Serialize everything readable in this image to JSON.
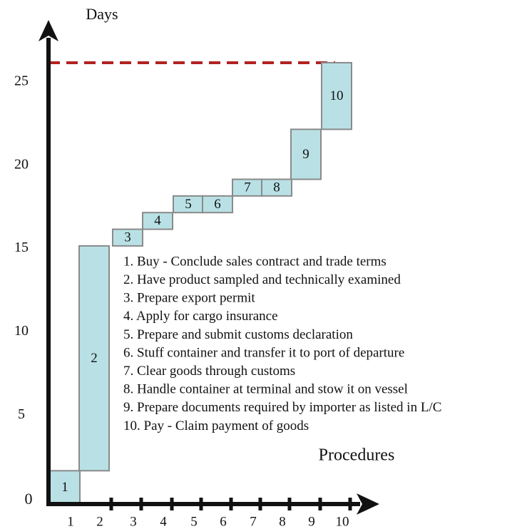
{
  "chart_data": {
    "type": "floating_bar",
    "y_label": "Days",
    "x_label": "Procedures",
    "origin_label": "0",
    "categories": [
      "1",
      "2",
      "3",
      "4",
      "5",
      "6",
      "7",
      "8",
      "9",
      "10"
    ],
    "start": [
      0,
      2,
      15.5,
      16.5,
      17.5,
      17.5,
      18.5,
      18.5,
      19.5,
      22.5
    ],
    "values": [
      2,
      13.5,
      1,
      1,
      1,
      1,
      1,
      1,
      3,
      4
    ],
    "color": "#b9e1e5",
    "edge_color": "#8a8a8a",
    "reference_line": 26.5,
    "reference_color": "#b22222",
    "ylim": [
      0,
      28
    ],
    "yticks": [
      5,
      10,
      15,
      20,
      25
    ],
    "legend": [
      "1. Buy - Conclude sales contract and trade terms",
      "2. Have product sampled and technically examined",
      "3. Prepare export permit",
      "4. Apply for cargo insurance",
      "5. Prepare and submit customs declaration",
      "6. Stuff container and transfer it to port of departure",
      "7. Clear goods through customs",
      "8. Handle container at terminal and stow it on vessel",
      "9. Prepare documents required by importer as listed in L/C",
      "10. Pay - Claim payment of goods"
    ]
  }
}
